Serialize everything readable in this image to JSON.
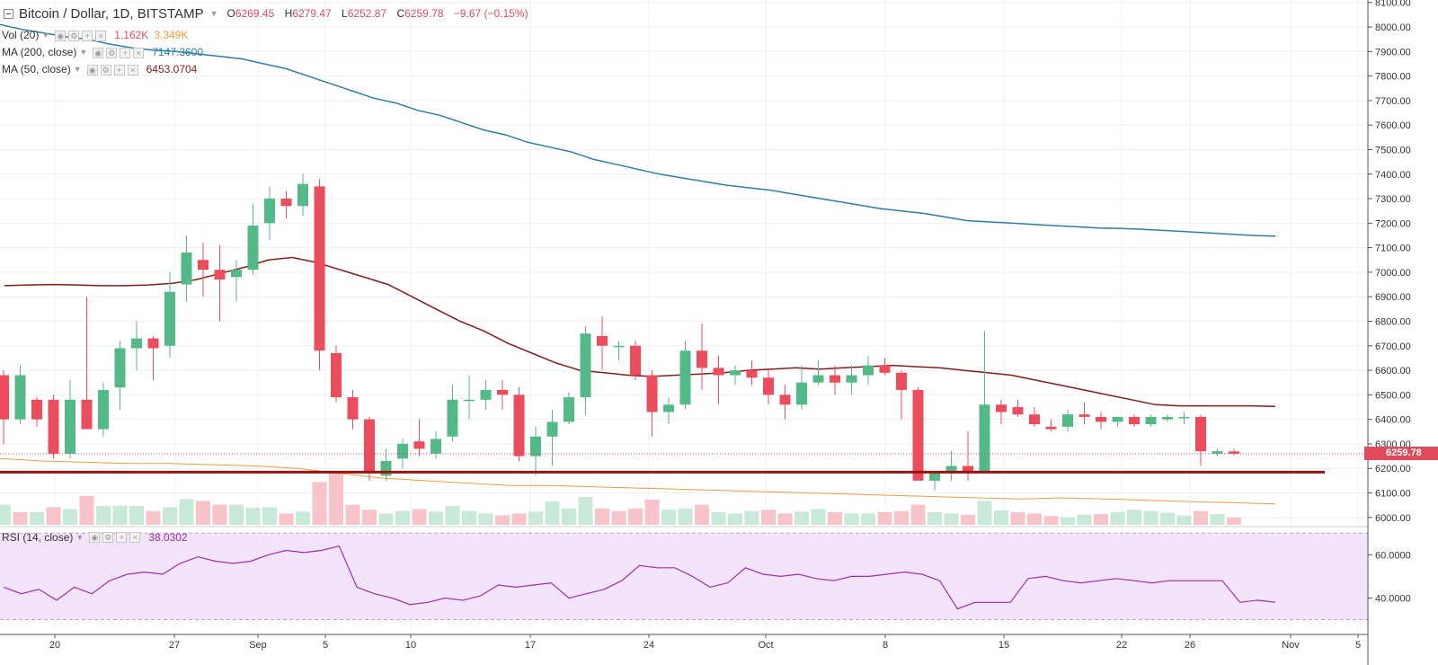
{
  "header": {
    "symbol": "Bitcoin / Dollar, 1D, BITSTAMP",
    "ohlc": {
      "o_label": "O",
      "o": "6269.45",
      "h_label": "H",
      "h": "6279.47",
      "l_label": "L",
      "l": "6252.87",
      "c_label": "C",
      "c": "6259.78",
      "change": "−9.67 (−0.15%)"
    }
  },
  "indicators": [
    {
      "label": "Vol (20)",
      "values": [
        "1.162K",
        "3.349K"
      ],
      "colors": [
        "#e24b5c",
        "#f39c38"
      ]
    },
    {
      "label": "MA (200, close)",
      "values": [
        "7147.3600"
      ],
      "colors": [
        "#2a7fa6"
      ]
    },
    {
      "label": "MA (50, close)",
      "values": [
        "6453.0704"
      ],
      "colors": [
        "#8b1a1a"
      ]
    }
  ],
  "rsi": {
    "label": "RSI (14, close)",
    "value": "38.0302",
    "color": "#9b30b0"
  },
  "last_price_tag": "6259.78",
  "colors": {
    "up": "#53b987",
    "down": "#eb4d5c",
    "vol_up": "#c8e8d8",
    "vol_down": "#f8c4c9",
    "ma200": "#2a7fa6",
    "ma50": "#8b1a1a",
    "vol_ma": "#f39c38",
    "support": "#9e1111",
    "rsi_line": "#9b30b0",
    "rsi_bg": "#f3e4fb"
  },
  "chart_data": [
    {
      "type": "candlestick",
      "title": "Bitcoin / Dollar, 1D, BITSTAMP",
      "x_ticks": [
        "20",
        "27",
        "Sep",
        "5",
        "10",
        "17",
        "24",
        "Oct",
        "8",
        "15",
        "22",
        "26",
        "Nov",
        "5"
      ],
      "y_ticks": [
        "6000.00",
        "6100.00",
        "6200.00",
        "6300.00",
        "6400.00",
        "6500.00",
        "6600.00",
        "6700.00",
        "6800.00",
        "6900.00",
        "7000.00",
        "7100.00",
        "7200.00",
        "7300.00",
        "7400.00",
        "7500.00",
        "7600.00",
        "7700.00",
        "7800.00",
        "7900.00",
        "8000.00",
        "8100.00"
      ],
      "ylim": [
        5970,
        8110
      ],
      "candles": [
        [
          6580,
          6600,
          6300,
          6400
        ],
        [
          6400,
          6620,
          6380,
          6580
        ],
        [
          6480,
          6490,
          6370,
          6400
        ],
        [
          6480,
          6500,
          6240,
          6260
        ],
        [
          6260,
          6560,
          6240,
          6480
        ],
        [
          6480,
          6900,
          6380,
          6360
        ],
        [
          6360,
          6550,
          6330,
          6520
        ],
        [
          6530,
          6720,
          6440,
          6690
        ],
        [
          6690,
          6800,
          6600,
          6730
        ],
        [
          6730,
          6740,
          6560,
          6690
        ],
        [
          6700,
          7000,
          6650,
          6920
        ],
        [
          6950,
          7150,
          6880,
          7080
        ],
        [
          7050,
          7120,
          6900,
          7010
        ],
        [
          7010,
          7110,
          6800,
          6970
        ],
        [
          6980,
          7050,
          6880,
          7010
        ],
        [
          7010,
          7280,
          6990,
          7190
        ],
        [
          7200,
          7350,
          7130,
          7300
        ],
        [
          7300,
          7330,
          7220,
          7270
        ],
        [
          7270,
          7400,
          7230,
          7360
        ],
        [
          7350,
          7380,
          6600,
          6680
        ],
        [
          6670,
          6700,
          6470,
          6490
        ],
        [
          6490,
          6520,
          6360,
          6400
        ],
        [
          6400,
          6410,
          6150,
          6180
        ],
        [
          6170,
          6280,
          6150,
          6230
        ],
        [
          6240,
          6320,
          6200,
          6300
        ],
        [
          6310,
          6400,
          6250,
          6280
        ],
        [
          6260,
          6350,
          6240,
          6320
        ],
        [
          6330,
          6540,
          6310,
          6480
        ],
        [
          6480,
          6580,
          6400,
          6480
        ],
        [
          6480,
          6560,
          6440,
          6520
        ],
        [
          6520,
          6560,
          6440,
          6500
        ],
        [
          6500,
          6530,
          6230,
          6250
        ],
        [
          6250,
          6370,
          6170,
          6330
        ],
        [
          6330,
          6440,
          6210,
          6390
        ],
        [
          6390,
          6510,
          6380,
          6490
        ],
        [
          6490,
          6780,
          6420,
          6750
        ],
        [
          6740,
          6820,
          6600,
          6700
        ],
        [
          6700,
          6720,
          6640,
          6700
        ],
        [
          6700,
          6720,
          6560,
          6580
        ],
        [
          6580,
          6600,
          6330,
          6430
        ],
        [
          6430,
          6490,
          6380,
          6460
        ],
        [
          6460,
          6720,
          6440,
          6680
        ],
        [
          6680,
          6790,
          6520,
          6610
        ],
        [
          6610,
          6660,
          6460,
          6580
        ],
        [
          6580,
          6620,
          6540,
          6600
        ],
        [
          6600,
          6640,
          6540,
          6570
        ],
        [
          6570,
          6600,
          6460,
          6500
        ],
        [
          6500,
          6540,
          6400,
          6460
        ],
        [
          6460,
          6620,
          6440,
          6550
        ],
        [
          6550,
          6640,
          6540,
          6580
        ],
        [
          6580,
          6620,
          6500,
          6550
        ],
        [
          6550,
          6620,
          6500,
          6580
        ],
        [
          6580,
          6660,
          6540,
          6620
        ],
        [
          6620,
          6650,
          6580,
          6590
        ],
        [
          6590,
          6600,
          6400,
          6520
        ],
        [
          6520,
          6530,
          6150,
          6150
        ],
        [
          6150,
          6190,
          6110,
          6190
        ],
        [
          6190,
          6270,
          6150,
          6210
        ],
        [
          6210,
          6350,
          6150,
          6190
        ],
        [
          6190,
          6760,
          6180,
          6460
        ],
        [
          6460,
          6480,
          6380,
          6430
        ],
        [
          6450,
          6480,
          6410,
          6420
        ],
        [
          6420,
          6450,
          6370,
          6380
        ],
        [
          6370,
          6400,
          6350,
          6360
        ],
        [
          6370,
          6440,
          6350,
          6420
        ],
        [
          6420,
          6470,
          6380,
          6410
        ],
        [
          6410,
          6430,
          6360,
          6390
        ],
        [
          6390,
          6410,
          6370,
          6410
        ],
        [
          6410,
          6420,
          6370,
          6380
        ],
        [
          6380,
          6420,
          6370,
          6410
        ],
        [
          6400,
          6420,
          6390,
          6410
        ],
        [
          6410,
          6430,
          6380,
          6410
        ],
        [
          6410,
          6420,
          6210,
          6270
        ],
        [
          6260,
          6280,
          6250,
          6270
        ],
        [
          6269.45,
          6279.47,
          6252.87,
          6259.78
        ]
      ],
      "volume_up": [
        1,
        0,
        1,
        0,
        1,
        0,
        1,
        1,
        1,
        0,
        1,
        1,
        0,
        0,
        1,
        1,
        1,
        0,
        1,
        0,
        0,
        0,
        0,
        1,
        1,
        0,
        1,
        1,
        1,
        1,
        0,
        0,
        1,
        1,
        1,
        1,
        0,
        0,
        0,
        0,
        1,
        1,
        0,
        1,
        1,
        1,
        0,
        0,
        1,
        1,
        0,
        1,
        1,
        0,
        0,
        0,
        1,
        1,
        0,
        1,
        1,
        0,
        0,
        0,
        1,
        1,
        0,
        1,
        1,
        1,
        1,
        1,
        0,
        1,
        0
      ],
      "volume_bars": [
        1.6,
        1.0,
        1.0,
        1.4,
        1.25,
        2.3,
        1.5,
        1.5,
        1.5,
        1.1,
        1.4,
        2.05,
        1.9,
        1.6,
        1.6,
        1.35,
        1.4,
        0.9,
        1.05,
        3.4,
        4.1,
        1.6,
        1.2,
        0.9,
        1.1,
        1.25,
        1.05,
        1.5,
        1.1,
        0.9,
        0.75,
        0.9,
        1.05,
        1.85,
        1.3,
        2.2,
        1.3,
        1.1,
        1.3,
        2.0,
        1.2,
        1.3,
        1.6,
        1.0,
        0.9,
        1.1,
        1.2,
        0.9,
        1.05,
        1.25,
        1.0,
        0.9,
        0.9,
        1.0,
        1.1,
        1.6,
        1.0,
        0.9,
        0.8,
        1.9,
        1.15,
        1.0,
        0.9,
        0.7,
        0.6,
        0.8,
        0.85,
        1.0,
        1.2,
        1.1,
        0.95,
        0.75,
        1.1,
        0.85,
        0.6
      ],
      "ma200": [
        8010,
        7990,
        7975,
        7960,
        7950,
        7930,
        7915,
        7905,
        7900,
        7890,
        7880,
        7870,
        7850,
        7830,
        7800,
        7770,
        7740,
        7710,
        7690,
        7660,
        7640,
        7610,
        7580,
        7560,
        7530,
        7510,
        7490,
        7460,
        7440,
        7420,
        7400,
        7385,
        7370,
        7355,
        7345,
        7335,
        7320,
        7305,
        7290,
        7275,
        7260,
        7250,
        7240,
        7225,
        7210,
        7205,
        7200,
        7195,
        7190,
        7185,
        7180,
        7178,
        7175,
        7170,
        7165,
        7160,
        7155,
        7150,
        7147.36
      ],
      "ma50": [
        6945,
        6948,
        6950,
        6948,
        6945,
        6945,
        6948,
        6955,
        6970,
        6995,
        7020,
        7050,
        7060,
        7040,
        7010,
        6980,
        6950,
        6900,
        6850,
        6800,
        6760,
        6710,
        6670,
        6630,
        6600,
        6590,
        6580,
        6575,
        6580,
        6585,
        6590,
        6600,
        6605,
        6610,
        6605,
        6610,
        6615,
        6620,
        6615,
        6610,
        6600,
        6590,
        6580,
        6560,
        6540,
        6520,
        6500,
        6480,
        6460,
        6455,
        6455,
        6455,
        6455,
        6453.07
      ],
      "vol_ma": [
        6240,
        6230,
        6225,
        6220,
        6220,
        6215,
        6210,
        6200,
        6180,
        6160,
        6150,
        6140,
        6130,
        6130,
        6125,
        6120,
        6115,
        6110,
        6105,
        6100,
        6095,
        6090,
        6085,
        6080,
        6075,
        6080,
        6075,
        6070,
        6065,
        6060,
        6055
      ],
      "price_line": 6259.78,
      "support_line": 6185
    },
    {
      "type": "line",
      "title": "RSI (14, close)",
      "y_ticks": [
        "40.0000",
        "60.0000"
      ],
      "ylim": [
        24,
        73
      ],
      "bands": [
        30,
        70
      ],
      "values": [
        45,
        42,
        44,
        39,
        45,
        42,
        48,
        51,
        52,
        51,
        56,
        59,
        57,
        56,
        57,
        60,
        62,
        61,
        62,
        64,
        45,
        42,
        40,
        37,
        38,
        40,
        39,
        41,
        46,
        45,
        46,
        47,
        40,
        42,
        44,
        48,
        55,
        54,
        54,
        50,
        45,
        47,
        54,
        51,
        50,
        51,
        49,
        48,
        50,
        50,
        51,
        52,
        51,
        48,
        35,
        38,
        38,
        38,
        49,
        50,
        48,
        47,
        48,
        49,
        48,
        47,
        48,
        48,
        48,
        48,
        38,
        39,
        38.03
      ]
    }
  ]
}
